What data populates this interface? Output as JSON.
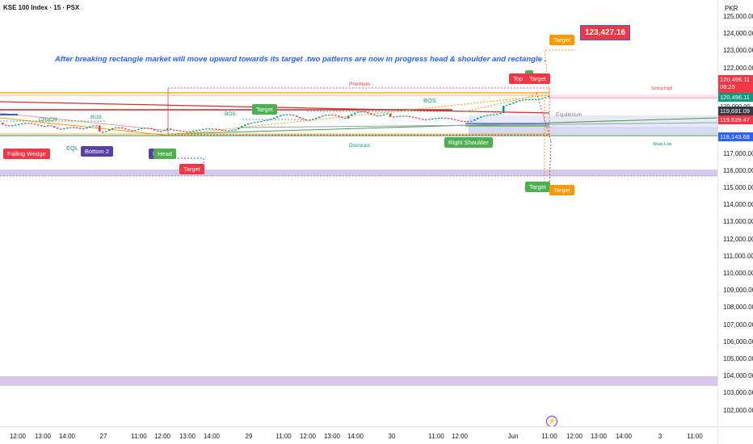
{
  "header": {
    "symbol_title": "KSE 100 Index · 15 · PSX"
  },
  "annotation": {
    "text": "After breaking rectangle market will move upward towards its target .two patterns are now in progress head & shoulder and rectangle ."
  },
  "price_axis": {
    "currency": "PKR",
    "ticks": [
      "125,000.00",
      "124,000.00",
      "123,000.00",
      "122,000.00",
      "121,000.00",
      "120,000.00",
      "119,000.00",
      "118,000.00",
      "117,000.00",
      "116,000.00",
      "115,000.00",
      "114,000.00",
      "113,000.00",
      "112,000.00",
      "111,000.00",
      "110,000.00",
      "109,000.00",
      "108,000.00",
      "107,000.00",
      "106,000.00",
      "105,000.00",
      "104,000.00",
      "103,000.00",
      "102,000.00"
    ],
    "tags": {
      "last_price": "120,496.11",
      "countdown": "08:25",
      "line_a": "120,496.11",
      "line_b": "120,000.00",
      "line_c": "119,691.09",
      "line_d": "119,639.47",
      "line_e": "118,143.68"
    }
  },
  "time_axis": {
    "labels": [
      "12:00",
      "13:00",
      "14:00",
      "27",
      "11:00",
      "12:00",
      "13:00",
      "14:00",
      "29",
      "11:00",
      "12:00",
      "13:00",
      "14:00",
      "30",
      "11:00",
      "12:00",
      "Jun",
      "11:00",
      "12:00",
      "13:00",
      "14:00",
      "3",
      "11:00"
    ]
  },
  "labels": {
    "falling_wedge": "Falling Wedge",
    "bottom2": "Bottom 2",
    "head": "Head",
    "head_prefix": "E",
    "target_low": "Target",
    "target_mid": "Target",
    "right_shoulder": "Right Shoulder",
    "top": "Top",
    "target_top": "Target",
    "target_big": "Target",
    "big_value": "123,427.16",
    "target_down_green": "Target",
    "target_down_orange": "Target",
    "target_down_suffix": "t",
    "choch": "CHoCH",
    "bos1": "BOS",
    "bos2": "BOS",
    "bos3": "BOS",
    "eql": "EQL",
    "premium": "Premium",
    "discount": "Discount",
    "equilibrium": "Equilibrium",
    "strong_high": "Strong High",
    "weak_low": "Weak Low"
  },
  "colors": {
    "up": "#089981",
    "down": "#f23645",
    "green_badge": "#4caf50",
    "red_badge": "#f23645",
    "orange_badge": "#ff9800",
    "purple_badge": "#5b3fa8",
    "blue": "#2962ff"
  }
}
